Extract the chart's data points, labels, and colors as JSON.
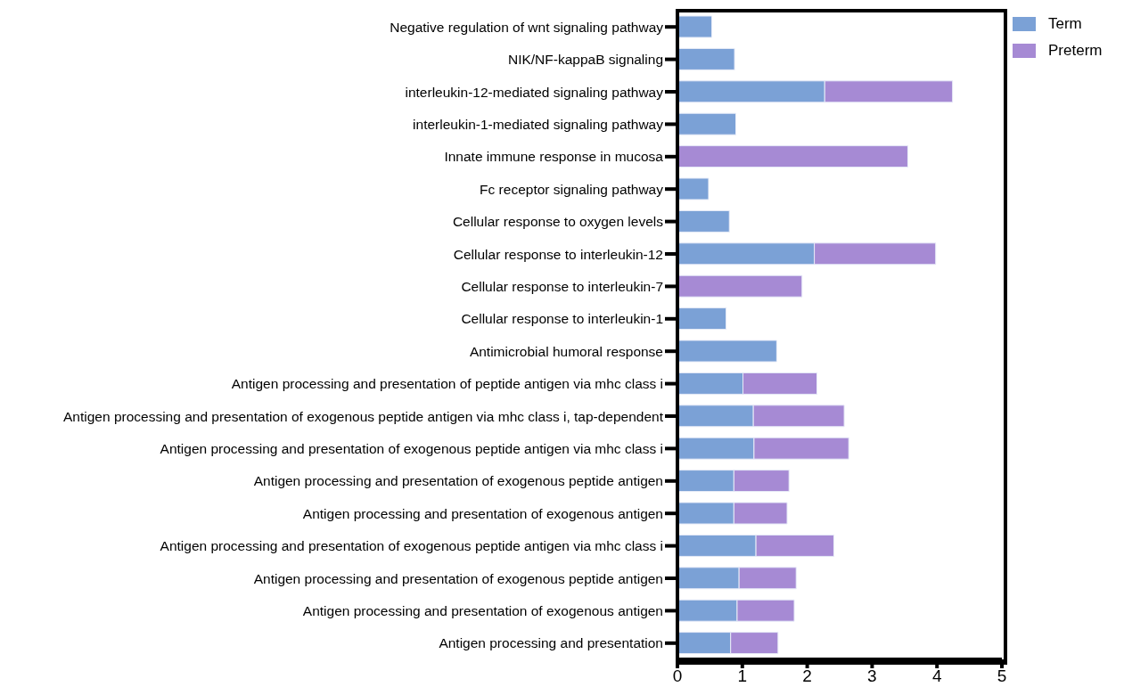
{
  "chart_data": {
    "type": "bar",
    "orientation": "horizontal",
    "stacked": true,
    "categories": [
      "Negative regulation of wnt signaling pathway",
      "NIK/NF-kappaB signaling",
      "interleukin-12-mediated signaling pathway",
      "interleukin-1-mediated signaling pathway",
      "Innate immune response in mucosa",
      "Fc receptor signaling pathway",
      "Cellular response to oxygen levels",
      "Cellular response to interleukin-12",
      "Cellular response to interleukin-7",
      "Cellular response to interleukin-1",
      "Antimicrobial humoral response",
      "Antigen processing and presentation of peptide antigen via mhc class i",
      "Antigen processing and presentation of exogenous peptide antigen via mhc class i, tap-dependent",
      "Antigen processing and presentation of exogenous peptide antigen via mhc class i",
      "Antigen processing and presentation of exogenous peptide antigen",
      "Antigen processing and presentation of exogenous antigen",
      "Antigen processing and presentation of exogenous peptide antigen via mhc class i",
      "Antigen processing and presentation of exogenous peptide antigen",
      "Antigen processing and presentation of exogenous antigen",
      "Antigen processing and presentation"
    ],
    "series": [
      {
        "name": "Term",
        "color": "#7ba1d6",
        "values": [
          0.53,
          0.88,
          2.27,
          0.9,
          null,
          0.48,
          0.8,
          2.11,
          null,
          0.75,
          1.53,
          1.01,
          1.17,
          1.18,
          0.87,
          0.87,
          1.21,
          0.95,
          0.92,
          0.82
        ]
      },
      {
        "name": "Preterm",
        "color": "#a68ad4",
        "values": [
          null,
          null,
          1.97,
          null,
          3.55,
          null,
          null,
          1.87,
          1.92,
          null,
          null,
          1.14,
          1.4,
          1.46,
          0.85,
          0.82,
          1.2,
          0.88,
          0.88,
          0.73
        ]
      }
    ],
    "xlim": [
      0,
      5
    ],
    "xticks": [
      0,
      1,
      2,
      3,
      4,
      5
    ],
    "grid": false,
    "legend": "top right"
  }
}
